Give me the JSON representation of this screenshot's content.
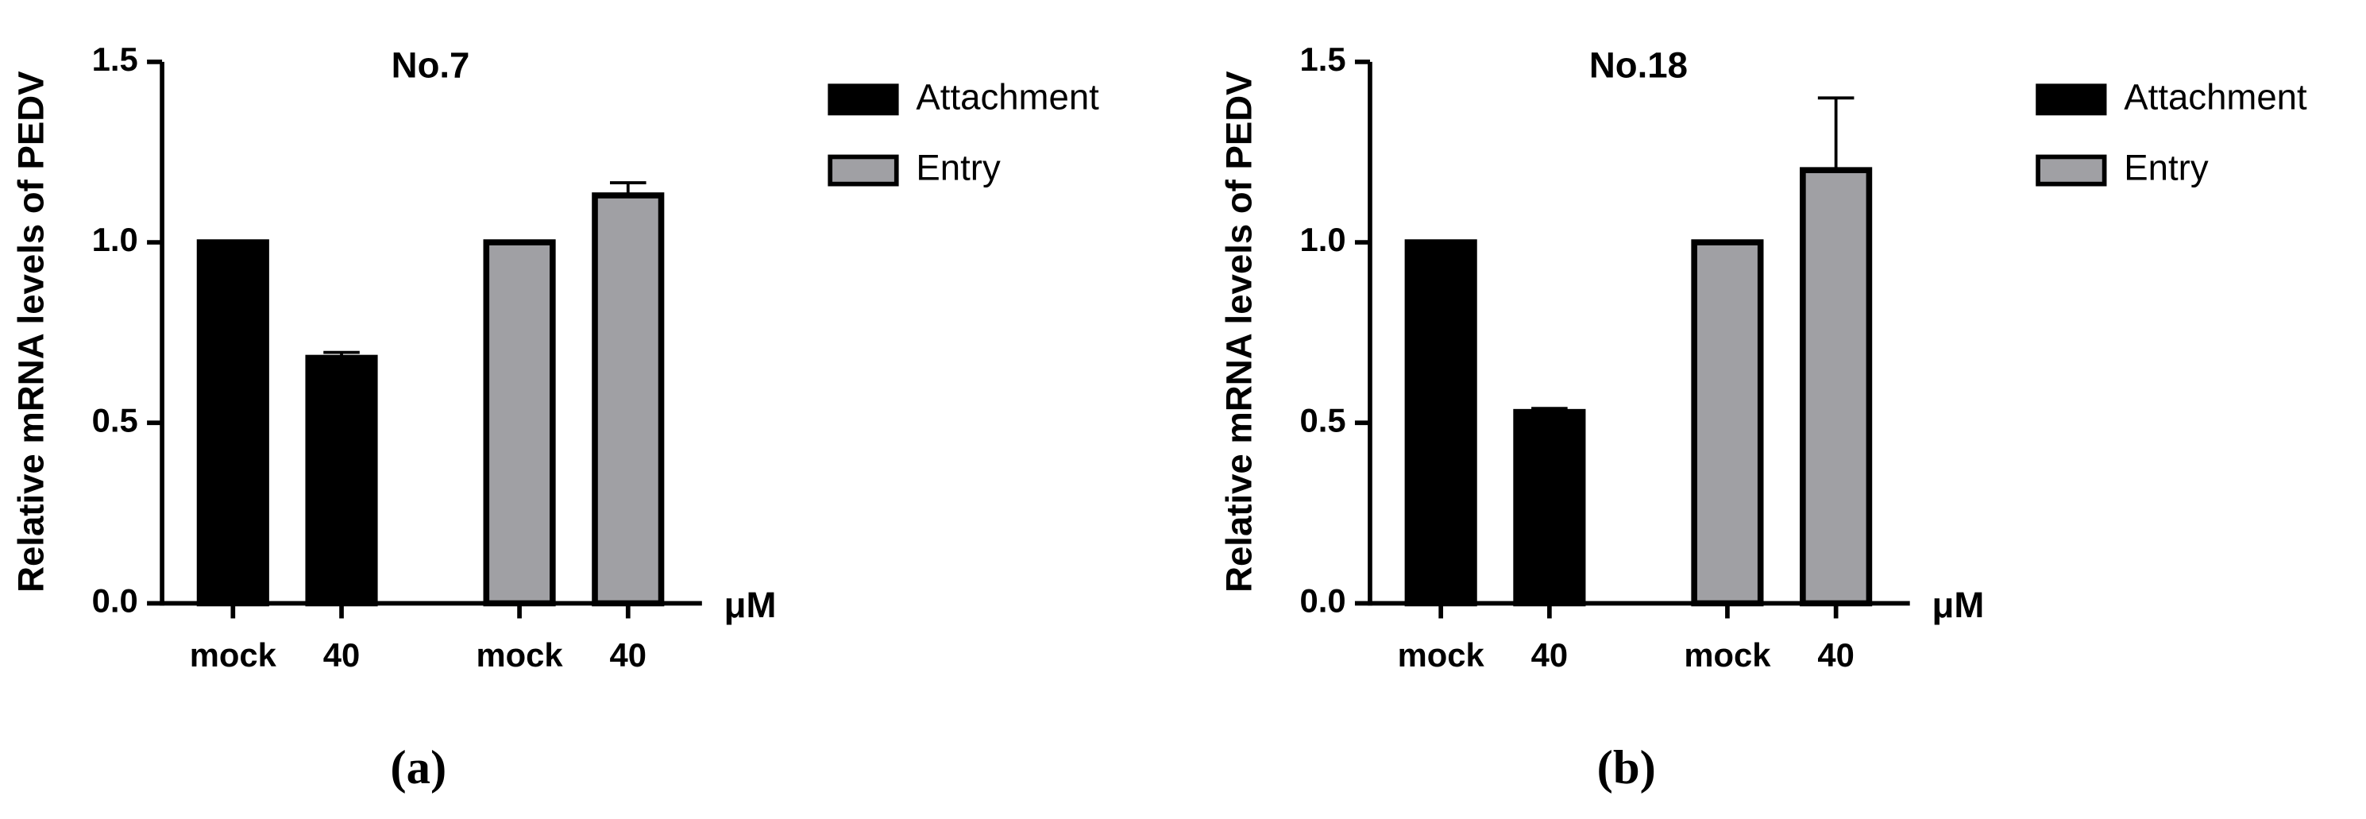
{
  "chart_data": [
    {
      "type": "bar",
      "title": "No.7",
      "ylabel": "Relative mRNA levels of PEDV",
      "xlabel": "μM",
      "caption": "(a)",
      "categories": [
        "mock",
        "40",
        "mock",
        "40"
      ],
      "series": [
        {
          "name": "Attachment",
          "color": "#000000",
          "values": [
            1.0,
            0.68,
            null,
            null
          ],
          "errors": [
            null,
            0.015,
            null,
            null
          ]
        },
        {
          "name": "Entry",
          "color": "#a0a0a4",
          "values": [
            null,
            null,
            1.0,
            1.13
          ],
          "errors": [
            null,
            null,
            null,
            0.035
          ]
        }
      ],
      "ylim": [
        0,
        1.5
      ],
      "yticks": [
        {
          "value": 0,
          "label": "0.0"
        },
        0.5,
        {
          "value": 1,
          "label": "1.0"
        },
        1.5
      ]
    },
    {
      "type": "bar",
      "title": "No.18",
      "ylabel": "Relative mRNA levels of PEDV",
      "xlabel": "μM",
      "caption": "(b)",
      "categories": [
        "mock",
        "40",
        "mock",
        "40"
      ],
      "series": [
        {
          "name": "Attachment",
          "color": "#000000",
          "values": [
            1.0,
            0.53,
            null,
            null
          ],
          "errors": [
            null,
            0.01,
            null,
            null
          ]
        },
        {
          "name": "Entry",
          "color": "#a0a0a4",
          "values": [
            null,
            null,
            1.0,
            1.2
          ],
          "errors": [
            null,
            null,
            null,
            0.2
          ]
        }
      ],
      "ylim": [
        0,
        1.5
      ],
      "yticks": [
        {
          "value": 0,
          "label": "0.0"
        },
        0.5,
        {
          "value": 1,
          "label": "1.0"
        },
        1.5
      ]
    }
  ]
}
